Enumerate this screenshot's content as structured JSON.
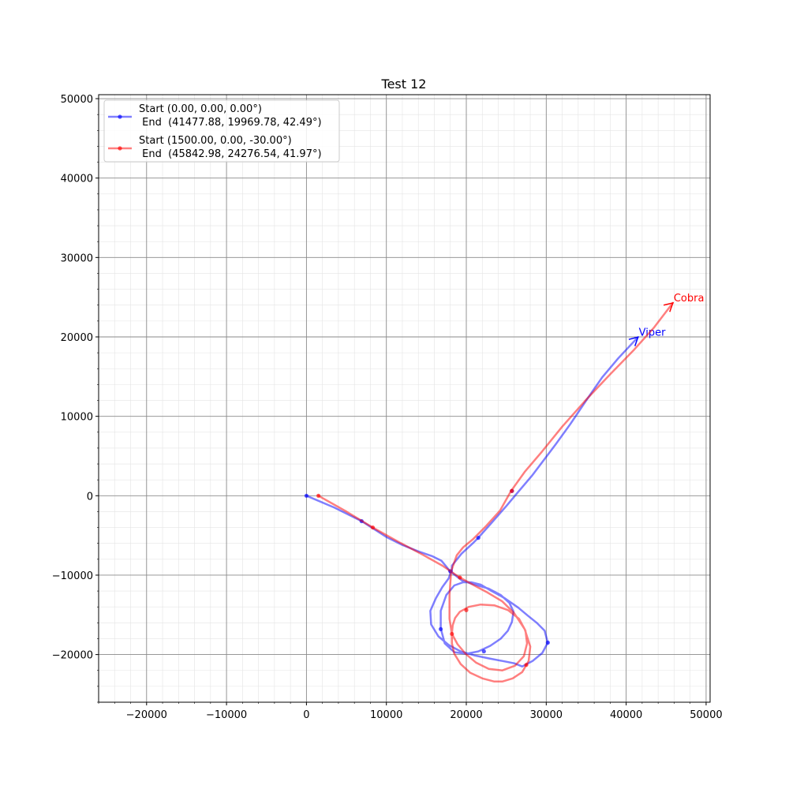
{
  "chart_data": {
    "type": "line",
    "title": "Test 12",
    "xlabel": "",
    "ylabel": "",
    "xlim": [
      -26000,
      50500
    ],
    "ylim": [
      -26000,
      50500
    ],
    "xticks": [
      -20000,
      -10000,
      0,
      10000,
      20000,
      30000,
      40000,
      50000
    ],
    "yticks": [
      -20000,
      -10000,
      0,
      10000,
      20000,
      30000,
      40000,
      50000
    ],
    "xtick_labels": [
      "−20000",
      "−10000",
      "0",
      "10000",
      "20000",
      "30000",
      "40000",
      "50000"
    ],
    "ytick_labels": [
      "−20000",
      "−10000",
      "0",
      "10000",
      "20000",
      "30000",
      "40000",
      "50000"
    ],
    "minor_step": 2000,
    "grid": true,
    "legend_position": "upper-left",
    "series": [
      {
        "name": "Viper",
        "color": "#0000ff",
        "legend_line1": "Start (0.00, 0.00, 0.00°)",
        "legend_line2": " End  (41477.88, 19969.78, 42.49°)",
        "end_label": "Viper",
        "end_heading_deg": 42.49,
        "x": [
          0,
          3500,
          6900,
          10000,
          12000,
          14000,
          15700,
          16900,
          17400,
          17800,
          18000,
          17800,
          17000,
          16200,
          15500,
          15600,
          16500,
          17800,
          19300,
          21000,
          22900,
          24500,
          26000,
          27000,
          28300,
          29500,
          30200,
          29800,
          28800,
          27700,
          26500,
          24800,
          23000,
          21800,
          20600,
          19600,
          18500,
          17500,
          16800,
          16800,
          17300,
          18500,
          20000,
          21500,
          23000,
          24300,
          25200,
          25700,
          25900,
          25400,
          24300,
          22800,
          21100,
          19500,
          18200,
          18200,
          19400,
          20800,
          21500,
          23000,
          25000,
          26500,
          28200,
          29700,
          31200,
          33000,
          35000,
          37000,
          39000,
          41477.88
        ],
        "y": [
          0,
          -1500,
          -3200,
          -5200,
          -6200,
          -7000,
          -7600,
          -8200,
          -8800,
          -9300,
          -9800,
          -10400,
          -11500,
          -12900,
          -14500,
          -16200,
          -17700,
          -18800,
          -19600,
          -20100,
          -20500,
          -20800,
          -21100,
          -21500,
          -20800,
          -19800,
          -18500,
          -17000,
          -16000,
          -15100,
          -14100,
          -12900,
          -11900,
          -11200,
          -10900,
          -10900,
          -11300,
          -12500,
          -14500,
          -16700,
          -18600,
          -19700,
          -19900,
          -19600,
          -18900,
          -18000,
          -17000,
          -15900,
          -14600,
          -13500,
          -12500,
          -11700,
          -11200,
          -10700,
          -9700,
          -8800,
          -7300,
          -6000,
          -5300,
          -3600,
          -1300,
          500,
          2500,
          4500,
          6500,
          9000,
          12000,
          14900,
          17300,
          19969.78
        ],
        "markers_x": [
          0,
          6900,
          18000,
          16800,
          22200,
          30200,
          21500,
          25700
        ],
        "markers_y": [
          0,
          -3200,
          -9500,
          -16800,
          -19600,
          -18500,
          -5300,
          600
        ]
      },
      {
        "name": "Cobra",
        "color": "#ff0000",
        "legend_line1": "Start (1500.00, 0.00, -30.00°)",
        "legend_line2": " End  (45842.98, 24276.54, 41.97°)",
        "end_label": "Cobra",
        "end_heading_deg": 41.97,
        "x": [
          1500,
          5000,
          8300,
          11500,
          14500,
          17000,
          19200,
          21000,
          22500,
          24500,
          26000,
          27300,
          28000,
          27800,
          27000,
          25800,
          24500,
          23500,
          22000,
          20500,
          19300,
          18500,
          18200,
          18200,
          18300,
          18600,
          19200,
          20300,
          21800,
          23500,
          25200,
          26600,
          27400,
          27600,
          27200,
          26100,
          24500,
          22800,
          21200,
          19900,
          18900,
          18200,
          17900,
          17900,
          18100,
          18800,
          19600,
          20800,
          22500,
          24200,
          25600,
          27300,
          29500,
          32000,
          35000,
          38000,
          41000,
          43500,
          45842.98
        ],
        "y": [
          0,
          -2000,
          -4000,
          -5800,
          -7400,
          -8800,
          -10300,
          -11300,
          -12100,
          -13300,
          -14800,
          -16800,
          -19000,
          -20800,
          -22200,
          -23000,
          -23400,
          -23400,
          -23000,
          -22300,
          -21200,
          -19900,
          -18600,
          -17300,
          -16300,
          -15400,
          -14600,
          -14000,
          -13700,
          -13800,
          -14400,
          -15500,
          -17000,
          -18600,
          -20200,
          -21400,
          -22000,
          -21800,
          -21000,
          -19900,
          -18700,
          -17400,
          -15500,
          -12500,
          -9500,
          -7500,
          -6500,
          -5500,
          -3800,
          -1900,
          600,
          3000,
          5600,
          8700,
          12100,
          15300,
          18400,
          21200,
          24276.54
        ],
        "markers_x": [
          1500,
          8300,
          19200,
          18200,
          20000,
          27500,
          25700
        ],
        "markers_y": [
          0,
          -4000,
          -10300,
          -17400,
          -14400,
          -21300,
          600
        ]
      }
    ]
  }
}
